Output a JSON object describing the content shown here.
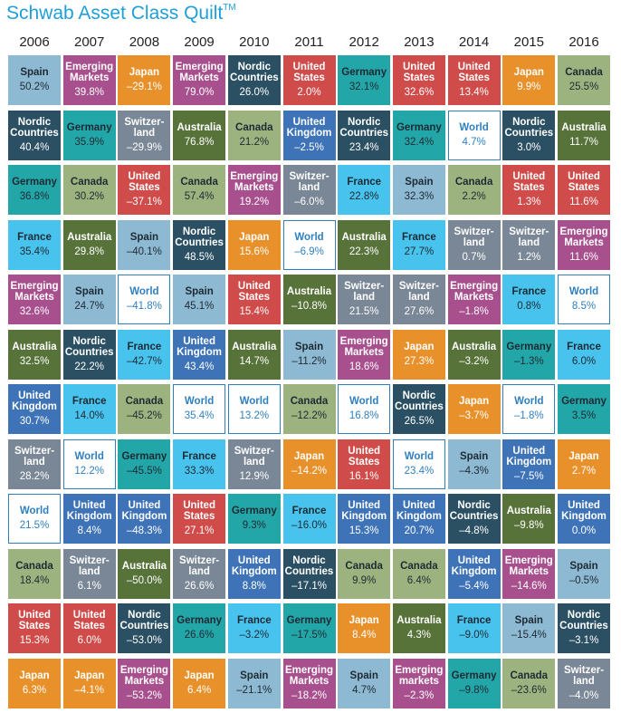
{
  "title": "Schwab Asset Class Quilt",
  "title_mark": "TM",
  "colors": {
    "Spain": "#8db9d2",
    "Emerging Markets": "#a84f8e",
    "Japan": "#e8912a",
    "Nordic Countries": "#2b4f63",
    "United States": "#cf4c4a",
    "Germany": "#23a6a8",
    "Canada": "#9db37f",
    "Australia": "#57733a",
    "Switzer-land": "#7a8796",
    "United Kingdom": "#3e73b8",
    "France": "#47c3ee",
    "World": "#ffffff",
    "world_border": "#2f7fbf",
    "world_text": "#2f7fbf"
  },
  "chart_data": {
    "type": "table",
    "title": "Schwab Asset Class Quilt",
    "years": [
      "2006",
      "2007",
      "2008",
      "2009",
      "2010",
      "2011",
      "2012",
      "2013",
      "2014",
      "2015",
      "2016"
    ],
    "columns": [
      [
        {
          "name": "Spain",
          "value": "50.2%"
        },
        {
          "name": "Nordic Countries",
          "value": "40.4%"
        },
        {
          "name": "Germany",
          "value": "36.8%"
        },
        {
          "name": "France",
          "value": "35.4%"
        },
        {
          "name": "Emerging Markets",
          "value": "32.6%"
        },
        {
          "name": "Australia",
          "value": "32.5%"
        },
        {
          "name": "United Kingdom",
          "value": "30.7%"
        },
        {
          "name": "Switzer-land",
          "value": "28.2%"
        },
        {
          "name": "World",
          "value": "21.5%"
        },
        {
          "name": "Canada",
          "value": "18.4%"
        },
        {
          "name": "United States",
          "value": "15.3%"
        },
        {
          "name": "Japan",
          "value": "6.3%"
        }
      ],
      [
        {
          "name": "Emerging Markets",
          "value": "39.8%"
        },
        {
          "name": "Germany",
          "value": "35.9%"
        },
        {
          "name": "Canada",
          "value": "30.2%"
        },
        {
          "name": "Australia",
          "value": "29.8%"
        },
        {
          "name": "Spain",
          "value": "24.7%"
        },
        {
          "name": "Nordic Countries",
          "value": "22.2%"
        },
        {
          "name": "France",
          "value": "14.0%"
        },
        {
          "name": "World",
          "value": "12.2%"
        },
        {
          "name": "United Kingdom",
          "value": "8.4%"
        },
        {
          "name": "Switzer-land",
          "value": "6.1%"
        },
        {
          "name": "United States",
          "value": "6.0%"
        },
        {
          "name": "Japan",
          "value": "–4.1%"
        }
      ],
      [
        {
          "name": "Japan",
          "value": "–29.1%"
        },
        {
          "name": "Switzer-land",
          "value": "–29.9%"
        },
        {
          "name": "United States",
          "value": "–37.1%"
        },
        {
          "name": "Spain",
          "value": "–40.1%"
        },
        {
          "name": "World",
          "value": "–41.8%"
        },
        {
          "name": "France",
          "value": "–42.7%"
        },
        {
          "name": "Canada",
          "value": "–45.2%"
        },
        {
          "name": "Germany",
          "value": "–45.5%"
        },
        {
          "name": "United Kingdom",
          "value": "–48.3%"
        },
        {
          "name": "Australia",
          "value": "–50.0%"
        },
        {
          "name": "Nordic Countries",
          "value": "–53.0%"
        },
        {
          "name": "Emerging Markets",
          "value": "–53.2%"
        }
      ],
      [
        {
          "name": "Emerging Markets",
          "value": "79.0%"
        },
        {
          "name": "Australia",
          "value": "76.8%"
        },
        {
          "name": "Canada",
          "value": "57.4%"
        },
        {
          "name": "Nordic Countries",
          "value": "48.5%"
        },
        {
          "name": "Spain",
          "value": "45.1%"
        },
        {
          "name": "United Kingdom",
          "value": "43.4%"
        },
        {
          "name": "World",
          "value": "35.4%"
        },
        {
          "name": "France",
          "value": "33.3%"
        },
        {
          "name": "United States",
          "value": "27.1%"
        },
        {
          "name": "Switzer-land",
          "value": "26.6%"
        },
        {
          "name": "Germany",
          "value": "26.6%"
        },
        {
          "name": "Japan",
          "value": "6.4%"
        }
      ],
      [
        {
          "name": "Nordic Countries",
          "value": "26.0%"
        },
        {
          "name": "Canada",
          "value": "21.2%"
        },
        {
          "name": "Emerging Markets",
          "value": "19.2%"
        },
        {
          "name": "Japan",
          "value": "15.6%"
        },
        {
          "name": "United States",
          "value": "15.4%"
        },
        {
          "name": "Australia",
          "value": "14.7%"
        },
        {
          "name": "World",
          "value": "13.2%"
        },
        {
          "name": "Switzer-land",
          "value": "12.9%"
        },
        {
          "name": "Germany",
          "value": "9.3%"
        },
        {
          "name": "United Kingdom",
          "value": "8.8%"
        },
        {
          "name": "France",
          "value": "–3.2%"
        },
        {
          "name": "Spain",
          "value": "–21.1%"
        }
      ],
      [
        {
          "name": "United States",
          "value": "2.0%"
        },
        {
          "name": "United Kingdom",
          "value": "–2.5%"
        },
        {
          "name": "Switzer-land",
          "value": "–6.0%"
        },
        {
          "name": "World",
          "value": "–6.9%"
        },
        {
          "name": "Australia",
          "value": "–10.8%"
        },
        {
          "name": "Spain",
          "value": "–11.2%"
        },
        {
          "name": "Canada",
          "value": "–12.2%"
        },
        {
          "name": "Japan",
          "value": "–14.2%"
        },
        {
          "name": "France",
          "value": "–16.0%"
        },
        {
          "name": "Nordic Countries",
          "value": "–17.1%"
        },
        {
          "name": "Germany",
          "value": "–17.5%"
        },
        {
          "name": "Emerging Markets",
          "value": "–18.2%"
        }
      ],
      [
        {
          "name": "Germany",
          "value": "32.1%"
        },
        {
          "name": "Nordic Countries",
          "value": "23.4%"
        },
        {
          "name": "France",
          "value": "22.8%"
        },
        {
          "name": "Australia",
          "value": "22.3%"
        },
        {
          "name": "Switzer-land",
          "value": "21.5%"
        },
        {
          "name": "Emerging Markets",
          "value": "18.6%"
        },
        {
          "name": "World",
          "value": "16.8%"
        },
        {
          "name": "United States",
          "value": "16.1%"
        },
        {
          "name": "United Kingdom",
          "value": "15.3%"
        },
        {
          "name": "Canada",
          "value": "9.9%"
        },
        {
          "name": "Japan",
          "value": "8.4%"
        },
        {
          "name": "Spain",
          "value": "4.7%"
        }
      ],
      [
        {
          "name": "United States",
          "value": "32.6%"
        },
        {
          "name": "Germany",
          "value": "32.4%"
        },
        {
          "name": "Spain",
          "value": "32.3%"
        },
        {
          "name": "France",
          "value": "27.7%"
        },
        {
          "name": "Switzer-land",
          "value": "27.6%"
        },
        {
          "name": "Japan",
          "value": "27.3%"
        },
        {
          "name": "Nordic Countries",
          "value": "26.5%"
        },
        {
          "name": "World",
          "value": "23.4%"
        },
        {
          "name": "United Kingdom",
          "value": "20.7%"
        },
        {
          "name": "Canada",
          "value": "6.4%"
        },
        {
          "name": "Australia",
          "value": "4.3%"
        },
        {
          "name": "Emerging markets",
          "value": "–2.3%"
        }
      ],
      [
        {
          "name": "United States",
          "value": "13.4%"
        },
        {
          "name": "World",
          "value": "4.7%"
        },
        {
          "name": "Canada",
          "value": "2.2%"
        },
        {
          "name": "Switzer-land",
          "value": "0.7%"
        },
        {
          "name": "Emerging Markets",
          "value": "–1.8%"
        },
        {
          "name": "Australia",
          "value": "–3.2%"
        },
        {
          "name": "Japan",
          "value": "–3.7%"
        },
        {
          "name": "Spain",
          "value": "–4.3%"
        },
        {
          "name": "Nordic Countries",
          "value": "–4.8%"
        },
        {
          "name": "United Kingdom",
          "value": "–5.4%"
        },
        {
          "name": "France",
          "value": "–9.0%"
        },
        {
          "name": "Germany",
          "value": "–9.8%"
        }
      ],
      [
        {
          "name": "Japan",
          "value": "9.9%"
        },
        {
          "name": "Nordic Countries",
          "value": "3.0%"
        },
        {
          "name": "United States",
          "value": "1.3%"
        },
        {
          "name": "Switzer-land",
          "value": "1.2%"
        },
        {
          "name": "France",
          "value": "0.8%"
        },
        {
          "name": "Germany",
          "value": "–1.3%"
        },
        {
          "name": "World",
          "value": "–1.8%"
        },
        {
          "name": "United Kingdom",
          "value": "–7.5%"
        },
        {
          "name": "Australia",
          "value": "–9.8%"
        },
        {
          "name": "Emerging Markets",
          "value": "–14.6%"
        },
        {
          "name": "Spain",
          "value": "–15.4%"
        },
        {
          "name": "Canada",
          "value": "–23.6%"
        }
      ],
      [
        {
          "name": "Canada",
          "value": "25.5%"
        },
        {
          "name": "Australia",
          "value": "11.7%"
        },
        {
          "name": "United States",
          "value": "11.6%"
        },
        {
          "name": "Emerging Markets",
          "value": "11.6%"
        },
        {
          "name": "World",
          "value": "8.5%"
        },
        {
          "name": "France",
          "value": "6.0%"
        },
        {
          "name": "Germany",
          "value": "3.5%"
        },
        {
          "name": "Japan",
          "value": "2.7%"
        },
        {
          "name": "United Kingdom",
          "value": "0.0%"
        },
        {
          "name": "Spain",
          "value": "–0.5%"
        },
        {
          "name": "Nordic Countries",
          "value": "–3.1%"
        },
        {
          "name": "Switzer-land",
          "value": "–4.0%"
        }
      ]
    ]
  }
}
